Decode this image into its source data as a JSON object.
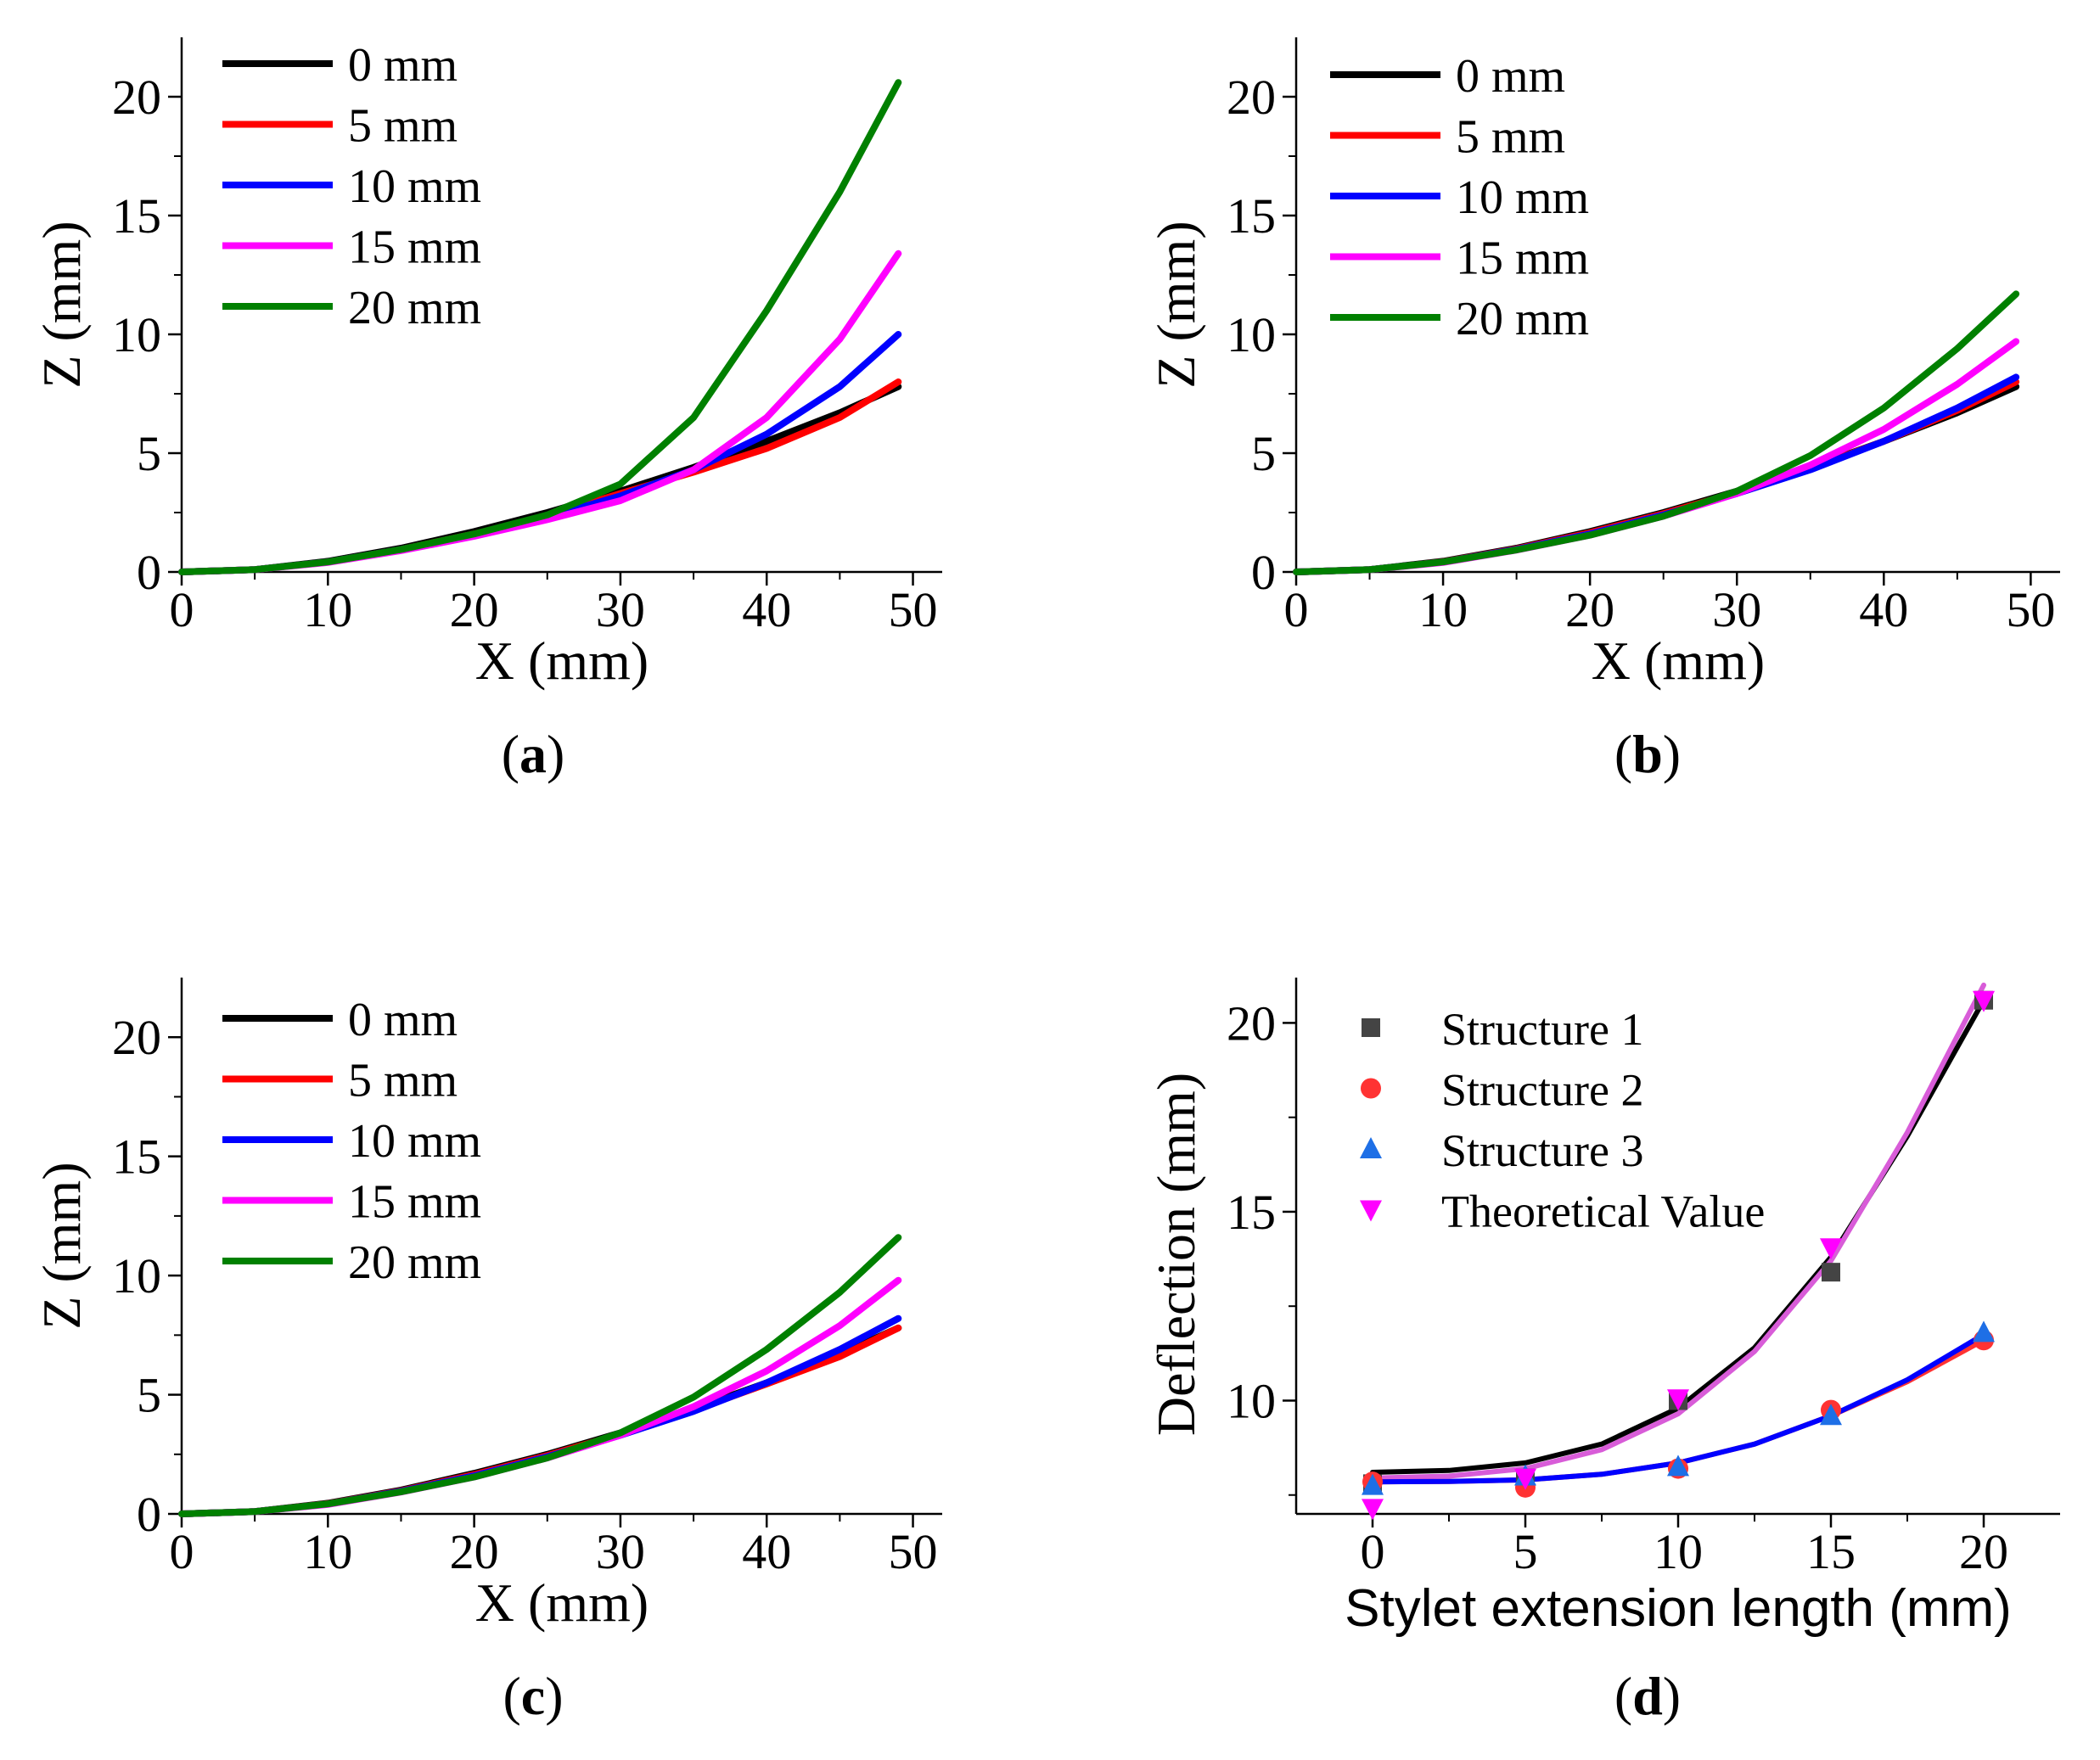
{
  "chart_data": [
    {
      "panel_label": "a",
      "type": "line",
      "xlabel": "X (mm)",
      "ylabel": "Z (mm)",
      "xlim": [
        0,
        52
      ],
      "ylim": [
        0,
        22.5
      ],
      "xticks": [
        0,
        10,
        20,
        30,
        40,
        50
      ],
      "yticks": [
        0,
        5,
        10,
        15,
        20
      ],
      "legend": "top-left",
      "series": [
        {
          "name": "0 mm",
          "color": "#000000",
          "x": [
            0,
            5,
            10,
            15,
            20,
            25,
            30,
            35,
            40,
            45,
            49
          ],
          "y": [
            0,
            0.1,
            0.45,
            1.0,
            1.7,
            2.5,
            3.4,
            4.4,
            5.5,
            6.7,
            7.8
          ]
        },
        {
          "name": "5 mm",
          "color": "#ff0000",
          "x": [
            0,
            5,
            10,
            15,
            20,
            25,
            30,
            35,
            40,
            45,
            49
          ],
          "y": [
            0,
            0.1,
            0.42,
            0.95,
            1.6,
            2.35,
            3.3,
            4.2,
            5.2,
            6.5,
            8.0
          ]
        },
        {
          "name": "10 mm",
          "color": "#0000ff",
          "x": [
            0,
            5,
            10,
            15,
            20,
            25,
            30,
            35,
            40,
            45,
            49
          ],
          "y": [
            0,
            0.1,
            0.42,
            0.95,
            1.55,
            2.3,
            3.2,
            4.3,
            5.8,
            7.8,
            10.0
          ]
        },
        {
          "name": "15 mm",
          "color": "#ff00ff",
          "x": [
            0,
            5,
            10,
            15,
            20,
            25,
            30,
            35,
            40,
            45,
            49
          ],
          "y": [
            0,
            0.1,
            0.4,
            0.9,
            1.5,
            2.2,
            3.0,
            4.3,
            6.5,
            9.8,
            13.4
          ]
        },
        {
          "name": "20 mm",
          "color": "#008000",
          "x": [
            0,
            5,
            10,
            15,
            20,
            25,
            30,
            35,
            40,
            45,
            49
          ],
          "y": [
            0,
            0.1,
            0.42,
            0.95,
            1.6,
            2.4,
            3.7,
            6.5,
            11.0,
            16.0,
            20.6
          ]
        }
      ]
    },
    {
      "panel_label": "b",
      "type": "line",
      "xlabel": "X (mm)",
      "ylabel": "Z (mm)",
      "xlim": [
        0,
        52
      ],
      "ylim": [
        0,
        22.5
      ],
      "xticks": [
        0,
        10,
        20,
        30,
        40,
        50
      ],
      "yticks": [
        0,
        5,
        10,
        15,
        20
      ],
      "legend": "top-left",
      "series": [
        {
          "name": "0 mm",
          "color": "#000000",
          "x": [
            0,
            5,
            10,
            15,
            20,
            25,
            30,
            35,
            40,
            45,
            49
          ],
          "y": [
            0,
            0.1,
            0.45,
            1.0,
            1.7,
            2.5,
            3.4,
            4.4,
            5.5,
            6.7,
            7.8
          ]
        },
        {
          "name": "5 mm",
          "color": "#ff0000",
          "x": [
            0,
            5,
            10,
            15,
            20,
            25,
            30,
            35,
            40,
            45,
            49
          ],
          "y": [
            0,
            0.1,
            0.43,
            0.97,
            1.65,
            2.45,
            3.35,
            4.35,
            5.5,
            6.8,
            8.0
          ]
        },
        {
          "name": "10 mm",
          "color": "#0000ff",
          "x": [
            0,
            5,
            10,
            15,
            20,
            25,
            30,
            35,
            40,
            45,
            49
          ],
          "y": [
            0,
            0.1,
            0.42,
            0.95,
            1.6,
            2.4,
            3.3,
            4.3,
            5.5,
            6.9,
            8.2
          ]
        },
        {
          "name": "15 mm",
          "color": "#ff00ff",
          "x": [
            0,
            5,
            10,
            15,
            20,
            25,
            30,
            35,
            40,
            45,
            49
          ],
          "y": [
            0,
            0.1,
            0.4,
            0.92,
            1.55,
            2.35,
            3.3,
            4.5,
            6.0,
            7.9,
            9.7
          ]
        },
        {
          "name": "20 mm",
          "color": "#008000",
          "x": [
            0,
            5,
            10,
            15,
            20,
            25,
            30,
            35,
            40,
            45,
            49
          ],
          "y": [
            0,
            0.1,
            0.42,
            0.93,
            1.55,
            2.35,
            3.4,
            4.9,
            6.9,
            9.4,
            11.7
          ]
        }
      ]
    },
    {
      "panel_label": "c",
      "type": "line",
      "xlabel": "X (mm)",
      "ylabel": "Z (mm)",
      "xlim": [
        0,
        52
      ],
      "ylim": [
        0,
        22.5
      ],
      "xticks": [
        0,
        10,
        20,
        30,
        40,
        50
      ],
      "yticks": [
        0,
        5,
        10,
        15,
        20
      ],
      "legend": "top-left",
      "series": [
        {
          "name": "0 mm",
          "color": "#000000",
          "x": [
            0,
            5,
            10,
            15,
            20,
            25,
            30,
            35,
            40,
            45,
            49
          ],
          "y": [
            0,
            0.1,
            0.45,
            1.0,
            1.7,
            2.5,
            3.4,
            4.4,
            5.5,
            6.7,
            7.8
          ]
        },
        {
          "name": "5 mm",
          "color": "#ff0000",
          "x": [
            0,
            5,
            10,
            15,
            20,
            25,
            30,
            35,
            40,
            45,
            49
          ],
          "y": [
            0,
            0.1,
            0.43,
            0.97,
            1.65,
            2.45,
            3.35,
            4.35,
            5.45,
            6.6,
            7.8
          ]
        },
        {
          "name": "10 mm",
          "color": "#0000ff",
          "x": [
            0,
            5,
            10,
            15,
            20,
            25,
            30,
            35,
            40,
            45,
            49
          ],
          "y": [
            0,
            0.1,
            0.42,
            0.95,
            1.6,
            2.4,
            3.3,
            4.3,
            5.5,
            6.9,
            8.2
          ]
        },
        {
          "name": "15 mm",
          "color": "#ff00ff",
          "x": [
            0,
            5,
            10,
            15,
            20,
            25,
            30,
            35,
            40,
            45,
            49
          ],
          "y": [
            0,
            0.1,
            0.4,
            0.92,
            1.55,
            2.35,
            3.3,
            4.5,
            6.0,
            7.9,
            9.8
          ]
        },
        {
          "name": "20 mm",
          "color": "#008000",
          "x": [
            0,
            5,
            10,
            15,
            20,
            25,
            30,
            35,
            40,
            45,
            49
          ],
          "y": [
            0,
            0.1,
            0.42,
            0.93,
            1.55,
            2.35,
            3.4,
            4.9,
            6.9,
            9.3,
            11.6
          ]
        }
      ]
    },
    {
      "panel_label": "d",
      "type": "scatter",
      "xlabel": "Stylet extension length (mm)",
      "ylabel": "Deflection (mm)",
      "xlim": [
        -2.5,
        22.5
      ],
      "ylim": [
        7,
        21.2
      ],
      "xticks": [
        0,
        5,
        10,
        15,
        20
      ],
      "yticks": [
        10,
        15,
        20
      ],
      "legend": "top-left",
      "series": [
        {
          "name": "Structure 1",
          "marker": "square",
          "color": "#444444",
          "x": [
            0,
            5,
            10,
            15,
            20
          ],
          "y": [
            7.8,
            7.95,
            10.0,
            13.4,
            20.6
          ]
        },
        {
          "name": "Structure 2",
          "marker": "circle",
          "color": "#ff3333",
          "x": [
            0,
            5,
            10,
            15,
            20
          ],
          "y": [
            7.85,
            7.7,
            8.2,
            9.75,
            11.6
          ]
        },
        {
          "name": "Structure 3",
          "marker": "triangle-up",
          "color": "#1e6fe6",
          "x": [
            0,
            5,
            10,
            15,
            20
          ],
          "y": [
            7.75,
            8.0,
            8.25,
            9.6,
            11.8
          ]
        },
        {
          "name": "Theoretical Value",
          "marker": "triangle-down",
          "color": "#ff00ff",
          "x": [
            0,
            5,
            10,
            15,
            20
          ],
          "y": [
            7.15,
            7.95,
            10.05,
            14.05,
            20.6
          ]
        }
      ],
      "fits": [
        {
          "color": "#000000",
          "x": [
            0,
            2.5,
            5,
            7.5,
            10,
            12.5,
            15,
            17.5,
            20
          ],
          "y": [
            8.1,
            8.15,
            8.35,
            8.85,
            9.8,
            11.4,
            13.8,
            17.0,
            20.6
          ]
        },
        {
          "color": "#d85cd8",
          "x": [
            0,
            2.5,
            5,
            7.5,
            10,
            12.5,
            15,
            17.5,
            20
          ],
          "y": [
            7.95,
            8.0,
            8.2,
            8.7,
            9.65,
            11.3,
            13.7,
            17.1,
            21.0
          ]
        },
        {
          "color": "#ff3333",
          "x": [
            0,
            2.5,
            5,
            7.5,
            10,
            12.5,
            15,
            17.5,
            20
          ],
          "y": [
            7.85,
            7.86,
            7.9,
            8.05,
            8.35,
            8.85,
            9.6,
            10.5,
            11.6
          ]
        },
        {
          "color": "#0000ff",
          "x": [
            0,
            2.5,
            5,
            7.5,
            10,
            12.5,
            15,
            17.5,
            20
          ],
          "y": [
            7.85,
            7.86,
            7.9,
            8.05,
            8.35,
            8.85,
            9.6,
            10.55,
            11.75
          ]
        }
      ]
    }
  ]
}
